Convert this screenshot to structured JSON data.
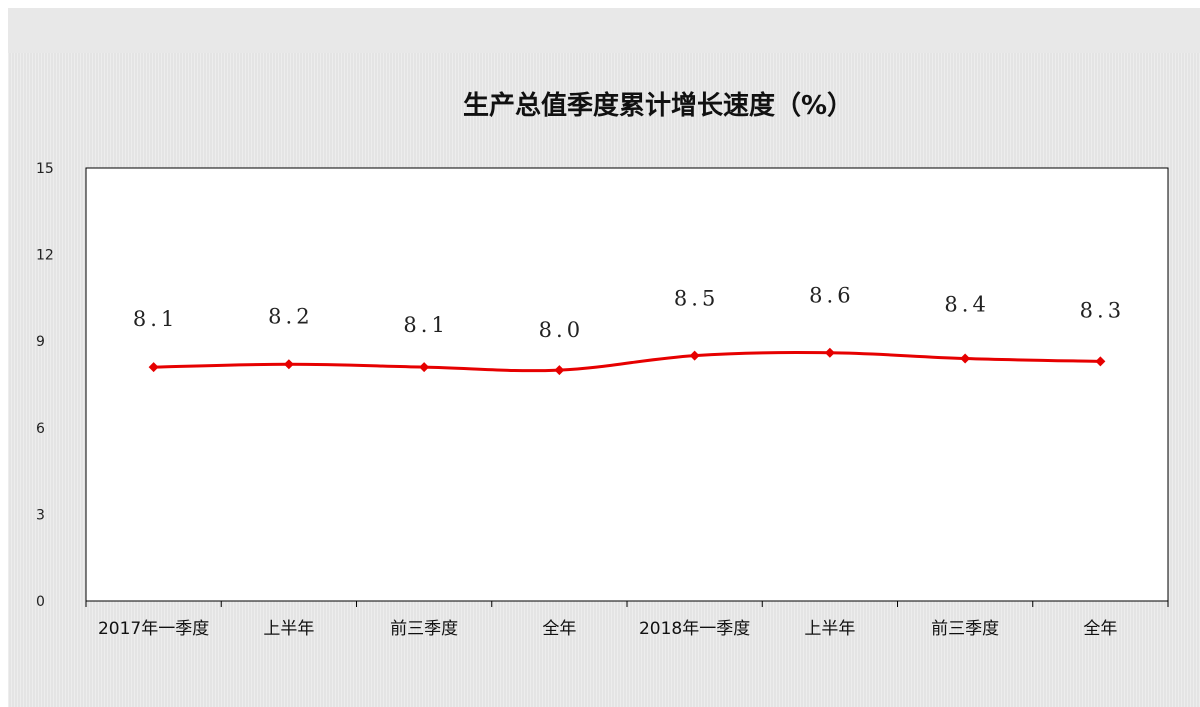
{
  "chart_data": {
    "type": "line",
    "title": "生产总值季度累计增长速度（%）",
    "categories": [
      "2017年一季度",
      "上半年",
      "前三季度",
      "全年",
      "2018年一季度",
      "上半年",
      "前三季度",
      "全年"
    ],
    "series": [
      {
        "values": [
          8.1,
          8.2,
          8.1,
          8.0,
          8.5,
          8.6,
          8.4,
          8.3
        ],
        "color": "#e60000"
      }
    ],
    "data_labels": [
      "8.1",
      "8.2",
      "8.1",
      "8.0",
      "8.5",
      "8.6",
      "8.4",
      "8.3"
    ],
    "yticks": [
      "0",
      "3",
      "6",
      "9",
      "12",
      "15"
    ],
    "ylim": [
      0,
      15
    ],
    "grid": false,
    "legend": "none",
    "xlabel": "",
    "ylabel": ""
  }
}
